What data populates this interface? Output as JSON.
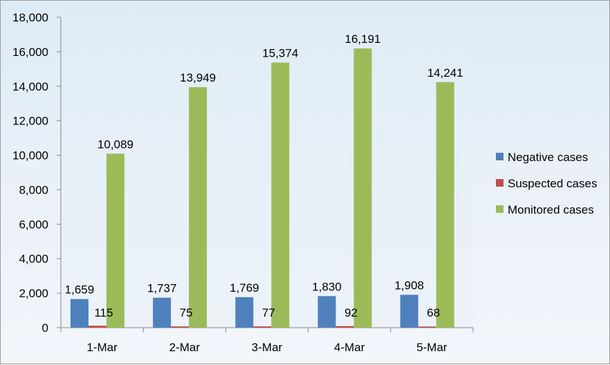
{
  "chart_data": {
    "type": "bar",
    "categories": [
      "1-Mar",
      "2-Mar",
      "3-Mar",
      "4-Mar",
      "5-Mar"
    ],
    "series": [
      {
        "name": "Negative cases",
        "values": [
          1659,
          1737,
          1769,
          1830,
          1908
        ],
        "labels": [
          "1,659",
          "1,737",
          "1,769",
          "1,830",
          "1,908"
        ],
        "color": "#4f81bd"
      },
      {
        "name": "Suspected cases",
        "values": [
          115,
          75,
          77,
          92,
          68
        ],
        "labels": [
          "115",
          "75",
          "77",
          "92",
          "68"
        ],
        "color": "#c0504d"
      },
      {
        "name": "Monitored cases",
        "values": [
          10089,
          13949,
          15374,
          16191,
          14241
        ],
        "labels": [
          "10,089",
          "13,949",
          "15,374",
          "16,191",
          "14,241"
        ],
        "color": "#9bbb59"
      }
    ],
    "ylim": [
      0,
      18000
    ],
    "yticks": [
      "0",
      "2,000",
      "4,000",
      "6,000",
      "8,000",
      "10,000",
      "12,000",
      "14,000",
      "16,000",
      "18,000"
    ],
    "grid": false,
    "legend": "right",
    "title": "",
    "xlabel": "",
    "ylabel": ""
  }
}
